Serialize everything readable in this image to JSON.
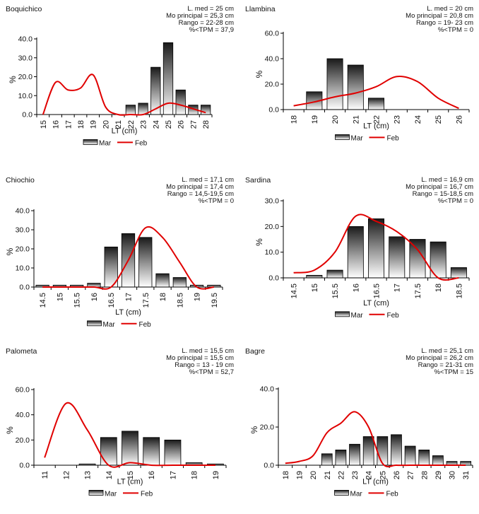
{
  "legend": {
    "bar_label": "Mar",
    "line_label": "Feb",
    "bar_color": "#222222",
    "line_color": "#e00000"
  },
  "chart_data": [
    {
      "type": "bar",
      "title": "Boquichico",
      "categories": [
        "15",
        "16",
        "17",
        "18",
        "19",
        "20",
        "21",
        "22",
        "23",
        "24",
        "25",
        "26",
        "27",
        "28"
      ],
      "ylim": [
        0,
        40
      ],
      "yticks": [
        "0.0",
        "10.0",
        "20.0",
        "30.0",
        "40.0"
      ],
      "ylabel": "%",
      "xlabel": "LT (cm)",
      "stats": [
        "L. med = 25 cm",
        "Mo principal = 25,3 cm",
        "Rango = 22-28 cm",
        "%<TPM = 37,9"
      ],
      "series": [
        {
          "name": "Mar",
          "type": "bar",
          "values": [
            0,
            0,
            0,
            0,
            0,
            0,
            0,
            5,
            6,
            25,
            38,
            13,
            5,
            5
          ]
        },
        {
          "name": "Feb",
          "type": "line",
          "values": [
            0,
            17,
            13,
            14,
            21,
            4,
            0,
            0,
            0,
            3,
            6,
            5,
            3,
            1
          ]
        }
      ]
    },
    {
      "type": "bar",
      "title": "Llambina",
      "categories": [
        "18",
        "19",
        "20",
        "21",
        "22",
        "23",
        "24",
        "25",
        "26"
      ],
      "ylim": [
        0,
        60
      ],
      "yticks": [
        "0.0",
        "20.0",
        "40.0",
        "60.0"
      ],
      "ylabel": "%",
      "xlabel": "LT (cm)",
      "stats": [
        "L. med = 20 cm",
        "Mo principal = 20,8 cm",
        "Rango = 19- 23 cm",
        "%<TPM = 0"
      ],
      "series": [
        {
          "name": "Mar",
          "type": "bar",
          "values": [
            0,
            14,
            40,
            35,
            9,
            0,
            0,
            0,
            0
          ]
        },
        {
          "name": "Feb",
          "type": "line",
          "values": [
            3,
            6,
            10,
            13,
            18,
            26,
            22,
            9,
            1
          ]
        }
      ]
    },
    {
      "type": "bar",
      "title": "Chiochio",
      "categories": [
        "14.5",
        "15",
        "15.5",
        "16",
        "16.5",
        "17",
        "17.5",
        "18",
        "18.5",
        "19",
        "19.5"
      ],
      "ylim": [
        0,
        40
      ],
      "yticks": [
        "0.0",
        "10.0",
        "20.0",
        "30.0",
        "40.0"
      ],
      "ylabel": "%",
      "xlabel": "LT (cm)",
      "stats": [
        "L. med = 17,1 cm",
        "Mo principal = 17,4 cm",
        "Rango = 14,5-19,5 cm",
        "%<TPM = 0"
      ],
      "series": [
        {
          "name": "Mar",
          "type": "bar",
          "values": [
            1,
            1,
            1,
            2,
            21,
            28,
            26,
            7,
            5,
            1,
            1
          ]
        },
        {
          "name": "Feb",
          "type": "line",
          "values": [
            0,
            0,
            0,
            0,
            0,
            14,
            31,
            26,
            13,
            0,
            0
          ]
        }
      ]
    },
    {
      "type": "bar",
      "title": "Sardina",
      "categories": [
        "14.5",
        "15",
        "15.5",
        "16",
        "16.5",
        "17",
        "17.5",
        "18",
        "18.5"
      ],
      "ylim": [
        0,
        30
      ],
      "yticks": [
        "0.0",
        "10.0",
        "20.0",
        "30.0"
      ],
      "ylabel": "%",
      "xlabel": "LT (cm)",
      "stats": [
        "L. med = 16,9 cm",
        "Mo principal = 16,7 cm",
        "Rango = 15-18,5 cm",
        "%<TPM = 0"
      ],
      "series": [
        {
          "name": "Mar",
          "type": "bar",
          "values": [
            0,
            1,
            3,
            20,
            23,
            16,
            15,
            14,
            4
          ]
        },
        {
          "name": "Feb",
          "type": "line",
          "values": [
            2,
            3,
            10,
            24,
            22,
            18,
            11,
            0,
            0
          ]
        }
      ]
    },
    {
      "type": "bar",
      "title": "Palometa",
      "categories": [
        "11",
        "12",
        "13",
        "14",
        "15",
        "16",
        "17",
        "18",
        "19"
      ],
      "ylim": [
        0,
        60
      ],
      "yticks": [
        "0.0",
        "20.0",
        "40.0",
        "60.0"
      ],
      "ylabel": "%",
      "xlabel": "LT (cm)",
      "stats": [
        "L. med = 15,5 cm",
        "Mo principal = 15,5 cm",
        "Rango = 13 - 19 cm",
        "%<TPM = 52,7"
      ],
      "series": [
        {
          "name": "Mar",
          "type": "bar",
          "values": [
            0,
            0,
            1,
            22,
            27,
            22,
            20,
            2,
            1
          ]
        },
        {
          "name": "Feb",
          "type": "line",
          "values": [
            6,
            49,
            28,
            0,
            2,
            0,
            0,
            0,
            0
          ]
        }
      ]
    },
    {
      "type": "bar",
      "title": "Bagre",
      "categories": [
        "18",
        "19",
        "20",
        "21",
        "22",
        "23",
        "24",
        "25",
        "26",
        "27",
        "28",
        "29",
        "30",
        "31"
      ],
      "ylim": [
        0,
        40
      ],
      "yticks": [
        "0.0",
        "20.0",
        "40.0"
      ],
      "ylabel": "%",
      "xlabel": "LT (cm)",
      "stats": [
        "L. med = 25,1 cm",
        "Mo principal = 26,2 cm",
        "Rango = 21-31 cm",
        "%<TPM = 15"
      ],
      "series": [
        {
          "name": "Mar",
          "type": "bar",
          "values": [
            0,
            0,
            0,
            6,
            8,
            11,
            15,
            15,
            16,
            10,
            8,
            5,
            2,
            2
          ]
        },
        {
          "name": "Feb",
          "type": "line",
          "values": [
            1,
            2,
            5,
            17,
            22,
            28,
            20,
            1,
            0,
            0,
            0,
            0,
            0,
            0
          ]
        }
      ]
    }
  ]
}
